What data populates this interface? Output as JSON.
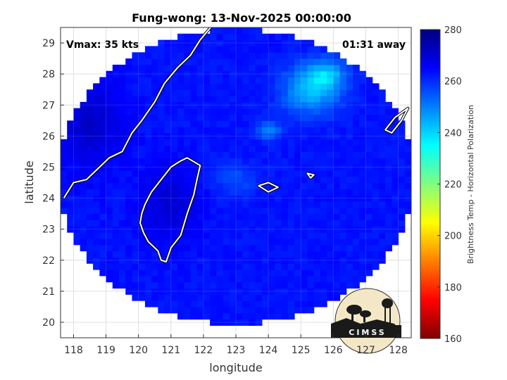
{
  "chart_data": {
    "type": "heatmap",
    "title": "Fung-wong: 13-Nov-2025 00:00:00",
    "xlabel": "longitude",
    "ylabel": "latitude",
    "xlim": [
      117.6,
      128.4
    ],
    "ylim": [
      19.5,
      29.5
    ],
    "xticks": [
      118,
      119,
      120,
      121,
      122,
      123,
      124,
      125,
      126,
      127,
      128
    ],
    "yticks": [
      20,
      21,
      22,
      23,
      24,
      25,
      26,
      27,
      28,
      29
    ],
    "grid": true,
    "annotations": {
      "vmax": "Vmax: 35 kts",
      "time_away": "01:31 away"
    },
    "colorbar": {
      "label": "Brightness Temp - Horizontal Polarization",
      "range": [
        160,
        280
      ],
      "ticks": [
        160,
        180,
        200,
        220,
        240,
        260,
        280
      ],
      "colormap": "jet"
    },
    "swath": {
      "center_lon": 123.0,
      "center_lat": 24.7,
      "radius_lon": 5.5,
      "radius_lat": 4.75
    },
    "field": {
      "background_value": 263,
      "features": [
        {
          "lon": 125.3,
          "lat": 27.5,
          "value": 244,
          "spread_lon": 0.9,
          "spread_lat": 0.8
        },
        {
          "lon": 125.8,
          "lat": 28.0,
          "value": 248,
          "spread_lon": 0.6,
          "spread_lat": 0.5
        },
        {
          "lon": 124.0,
          "lat": 26.2,
          "value": 250,
          "spread_lon": 0.4,
          "spread_lat": 0.3
        },
        {
          "lon": 123.0,
          "lat": 24.6,
          "value": 256,
          "spread_lon": 0.7,
          "spread_lat": 0.5
        },
        {
          "lon": 121.0,
          "lat": 23.8,
          "value": 270,
          "spread_lon": 0.9,
          "spread_lat": 1.2
        },
        {
          "lon": 118.5,
          "lat": 26.5,
          "value": 271,
          "spread_lon": 1.0,
          "spread_lat": 1.5
        }
      ]
    },
    "coastlines": {
      "taiwan": [
        [
          121.5,
          25.3
        ],
        [
          121.9,
          25.05
        ],
        [
          121.8,
          24.6
        ],
        [
          121.7,
          24.1
        ],
        [
          121.5,
          23.5
        ],
        [
          121.3,
          22.8
        ],
        [
          121.0,
          22.4
        ],
        [
          120.85,
          21.95
        ],
        [
          120.7,
          22.0
        ],
        [
          120.6,
          22.3
        ],
        [
          120.3,
          22.6
        ],
        [
          120.15,
          22.9
        ],
        [
          120.05,
          23.2
        ],
        [
          120.1,
          23.5
        ],
        [
          120.2,
          23.8
        ],
        [
          120.4,
          24.2
        ],
        [
          120.7,
          24.6
        ],
        [
          121.0,
          25.0
        ],
        [
          121.3,
          25.2
        ],
        [
          121.5,
          25.3
        ]
      ],
      "mainland": [
        [
          117.7,
          24.0
        ],
        [
          118.0,
          24.5
        ],
        [
          118.4,
          24.6
        ],
        [
          118.7,
          24.9
        ],
        [
          119.1,
          25.3
        ],
        [
          119.5,
          25.5
        ],
        [
          119.8,
          26.1
        ],
        [
          120.1,
          26.5
        ],
        [
          120.5,
          27.1
        ],
        [
          120.8,
          27.7
        ],
        [
          121.2,
          28.2
        ],
        [
          121.6,
          28.6
        ],
        [
          121.9,
          29.1
        ],
        [
          122.3,
          29.6
        ]
      ],
      "islands": [
        [
          [
            123.7,
            24.4
          ],
          [
            124.0,
            24.5
          ],
          [
            124.3,
            24.35
          ],
          [
            124.0,
            24.2
          ],
          [
            123.7,
            24.4
          ]
        ],
        [
          [
            125.2,
            24.8
          ],
          [
            125.4,
            24.75
          ],
          [
            125.3,
            24.65
          ],
          [
            125.2,
            24.8
          ]
        ],
        [
          [
            127.6,
            26.2
          ],
          [
            127.9,
            26.6
          ],
          [
            128.3,
            26.9
          ],
          [
            128.1,
            26.5
          ],
          [
            127.8,
            26.1
          ],
          [
            127.6,
            26.2
          ]
        ]
      ]
    }
  },
  "logo": {
    "text": "CIMSS",
    "name": "cimss-logo"
  }
}
